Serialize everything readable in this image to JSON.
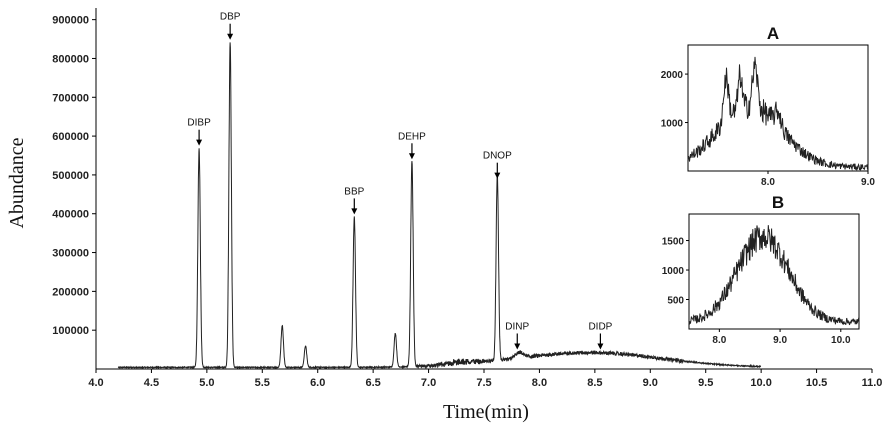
{
  "chart_data": [
    {
      "id": "main",
      "type": "line",
      "xlabel": "Time(min)",
      "ylabel": "Abundance",
      "xlim": [
        4.0,
        11.0
      ],
      "ylim": [
        0,
        930000
      ],
      "x_ticks": [
        "4.0",
        "4.5",
        "5.0",
        "5.5",
        "6.0",
        "6.5",
        "7.0",
        "7.5",
        "8.0",
        "8.5",
        "9.0",
        "9.5",
        "10.0",
        "10.5",
        "11.0"
      ],
      "y_ticks": [
        "100000",
        "200000",
        "300000",
        "400000",
        "500000",
        "600000",
        "700000",
        "800000",
        "900000"
      ],
      "peaks": [
        {
          "label": "DIBP",
          "x": 4.93,
          "y": 565000
        },
        {
          "label": "DBP",
          "x": 5.21,
          "y": 838000
        },
        {
          "label": "BBP",
          "x": 6.33,
          "y": 388000
        },
        {
          "label": "DEHP",
          "x": 6.85,
          "y": 530000
        },
        {
          "label": "DNOP",
          "x": 7.62,
          "y": 480000
        },
        {
          "label": "DINP",
          "x": 7.8,
          "y": 40000
        },
        {
          "label": "DIDP",
          "x": 8.55,
          "y": 40000
        }
      ],
      "minor_peaks": [
        {
          "x": 5.68,
          "y": 108000
        },
        {
          "x": 5.89,
          "y": 55000
        },
        {
          "x": 6.7,
          "y": 87000
        }
      ]
    },
    {
      "id": "inset-A",
      "type": "line",
      "title": "A",
      "xlim": [
        7.2,
        9.0
      ],
      "ylim": [
        0,
        2600
      ],
      "x_ticks": [
        "8.0",
        "9.0"
      ],
      "y_ticks": [
        "1000",
        "2000"
      ]
    },
    {
      "id": "inset-B",
      "type": "line",
      "title": "B",
      "xlim": [
        7.5,
        10.3
      ],
      "ylim": [
        0,
        1950
      ],
      "x_ticks": [
        "8.0",
        "9.0",
        "10.0"
      ],
      "y_ticks": [
        "500",
        "1000",
        "1500"
      ]
    }
  ]
}
